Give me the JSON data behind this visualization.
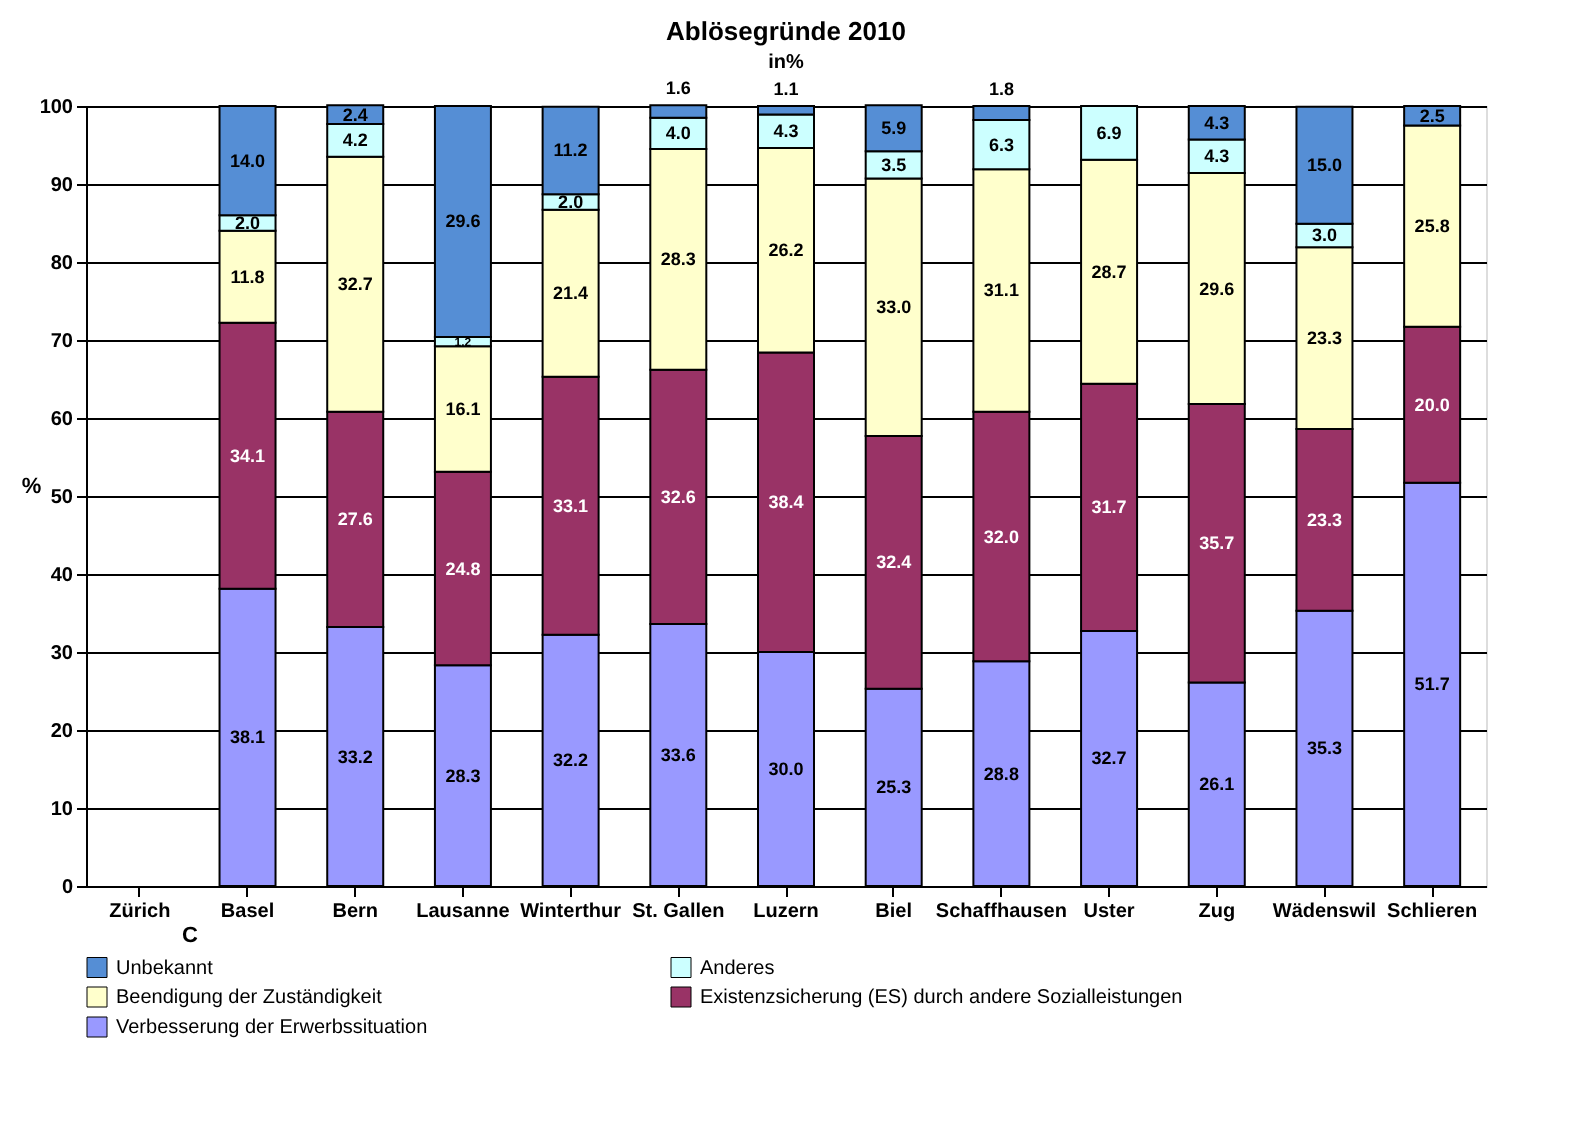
{
  "chart_data": {
    "type": "bar",
    "stacked": true,
    "title": "Ablösegründe 2010",
    "subtitle": "in%",
    "ylabel": "%",
    "categories": [
      "Zürich",
      "Basel",
      "Bern",
      "Lausanne",
      "Winterthur",
      "St. Gallen",
      "Luzern",
      "Biel",
      "Schaffhausen",
      "Uster",
      "Zug",
      "Wädenswil",
      "Schlieren"
    ],
    "series": [
      {
        "name": "Verbesserung der Erwerbssituation",
        "color": "#9999ff",
        "values": [
          null,
          38.1,
          33.2,
          28.3,
          32.2,
          33.6,
          30.0,
          25.3,
          28.8,
          32.7,
          26.1,
          35.3,
          51.7
        ],
        "value_labels": [
          null,
          "38.1",
          "33.2",
          "28.3",
          "32.2",
          "33.6",
          "30.0",
          "25.3",
          "28.8",
          "32.7",
          "26.1",
          "35.3",
          "51.7"
        ]
      },
      {
        "name": "Existenzsicherung (ES) durch andere Sozialleistungen",
        "color": "#993366",
        "values": [
          null,
          34.1,
          27.6,
          24.8,
          33.1,
          32.6,
          38.4,
          32.4,
          32.0,
          31.7,
          35.7,
          23.3,
          20.0
        ],
        "value_labels": [
          null,
          "34.1",
          "27.6",
          "24.8",
          "33.1",
          "32.6",
          "38.4",
          "32.4",
          "32.0",
          "31.7",
          "35.7",
          "23.3",
          "20.0"
        ]
      },
      {
        "name": "Beendigung der Zuständigkeit",
        "color": "#ffffcc",
        "values": [
          null,
          11.8,
          32.7,
          16.1,
          21.4,
          28.3,
          26.2,
          33.0,
          31.1,
          28.7,
          29.6,
          23.3,
          25.8
        ],
        "value_labels": [
          null,
          "11.8",
          "32.7",
          "16.1",
          "21.4",
          "28.3",
          "26.2",
          "33.0",
          "31.1",
          "28.7",
          "29.6",
          "23.3",
          "25.8"
        ]
      },
      {
        "name": "Anderes",
        "color": "#ccffff",
        "values": [
          null,
          2.0,
          4.2,
          1.2,
          2.0,
          4.0,
          4.3,
          3.5,
          6.3,
          6.9,
          4.3,
          3.0,
          null
        ],
        "value_labels": [
          null,
          "2.0",
          "4.2",
          "1.2",
          "2.0",
          "4.0",
          "4.3",
          "3.5",
          "6.3",
          "6.9",
          "4.3",
          "3.0",
          null
        ]
      },
      {
        "name": "Unbekannt",
        "color": "#558ed5",
        "values": [
          null,
          14.0,
          2.4,
          29.6,
          11.2,
          1.6,
          1.1,
          5.9,
          1.8,
          null,
          4.3,
          15.0,
          2.5
        ],
        "value_labels": [
          null,
          "14.0",
          "2.4",
          "29.6",
          "11.2",
          "1.6",
          "1.1",
          "5.9",
          "1.8",
          null,
          "4.3",
          "15.0",
          "2.5"
        ]
      }
    ],
    "ylim": [
      0,
      100
    ],
    "yticks": [
      0,
      10,
      20,
      30,
      40,
      50,
      60,
      70,
      80,
      90,
      100
    ],
    "grid": "y",
    "legend": "bottom",
    "annotations": [
      "C"
    ]
  }
}
